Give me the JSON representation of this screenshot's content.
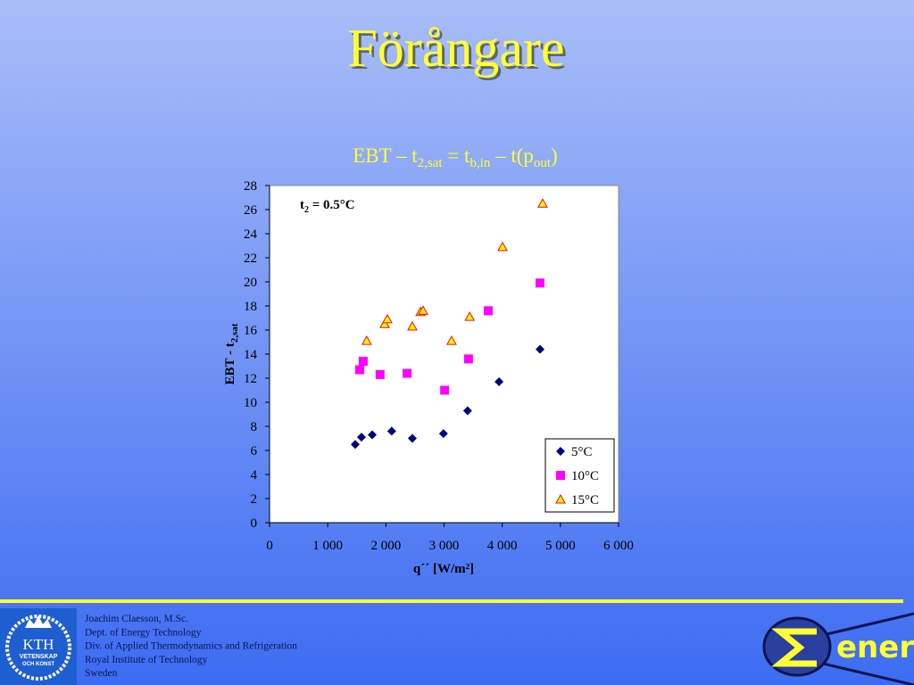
{
  "slide": {
    "title": "Förångare",
    "formula": [
      "EBT – t",
      "2,sat",
      " = t",
      "b,in",
      " – t(p",
      "out",
      ")"
    ]
  },
  "chart_data": {
    "type": "scatter",
    "annotation": [
      "t",
      "2",
      " = 0.5°C"
    ],
    "x_label": "q´´ [W/m²]",
    "y_label": [
      "EBT - t",
      "2,sat"
    ],
    "xlim": [
      0,
      6000
    ],
    "xticks": [
      0,
      {
        "value": 1000,
        "label": "1 000"
      },
      {
        "value": 2000,
        "label": "2 000"
      },
      {
        "value": 3000,
        "label": "3 000"
      },
      {
        "value": 4000,
        "label": "4 000"
      },
      {
        "value": 5000,
        "label": "5 000"
      },
      {
        "value": 6000,
        "label": "6 000"
      }
    ],
    "ylim": [
      0,
      28
    ],
    "yticks": [
      0,
      2,
      4,
      6,
      8,
      10,
      12,
      14,
      16,
      18,
      20,
      22,
      24,
      26,
      28
    ],
    "legend": "lower right",
    "series": [
      {
        "name": "5°C",
        "color": "#000080",
        "marker": "diamond",
        "x": [
          1473,
          1580,
          1765,
          2100,
          2455,
          2990,
          3405,
          3945,
          4650
        ],
        "values": [
          6.5,
          7.1,
          7.3,
          7.6,
          7.0,
          7.4,
          9.3,
          11.7,
          14.4
        ]
      },
      {
        "name": "10°C",
        "color": "#ff00ff",
        "marker": "square",
        "x": [
          1550,
          1610,
          1900,
          2365,
          3010,
          3420,
          3760,
          4650
        ],
        "values": [
          12.7,
          13.4,
          12.3,
          12.4,
          11.0,
          13.6,
          17.6,
          19.9
        ]
      },
      {
        "name": "15°C",
        "color": "#ffff00",
        "marker": "triangle",
        "x": [
          1670,
          1980,
          2025,
          2455,
          2595,
          2640,
          3130,
          3440,
          4005,
          4695
        ],
        "values": [
          15.1,
          16.5,
          16.9,
          16.3,
          17.5,
          17.6,
          15.1,
          17.1,
          22.9,
          26.5
        ]
      }
    ]
  },
  "footer": {
    "lines": [
      "Joachim Claesson, M.Sc.",
      "Dept. of Energy Technology",
      "Div. of Applied Thermodynamics and Refrigeration",
      "Royal Institute of Technology",
      "Sweden"
    ],
    "kth_logo": [
      "KTH",
      "VETENSKAP",
      "OCH KONST"
    ],
    "energi_logo": "energi"
  }
}
